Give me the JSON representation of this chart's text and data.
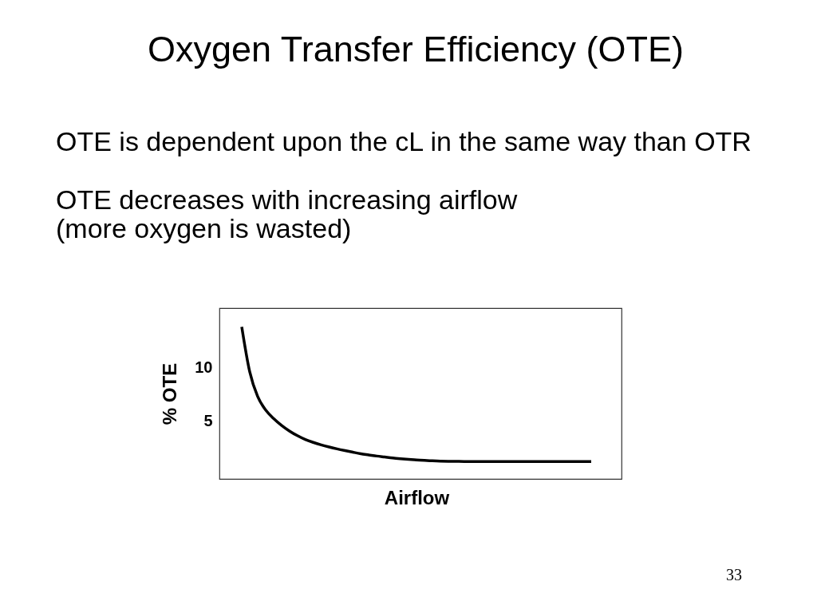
{
  "chart_data": {
    "type": "line",
    "title": "Oxygen Transfer Efficiency (OTE)",
    "annotations": [
      "OTE is dependent upon the cL in the same way than OTR",
      "OTE decreases with increasing airflow",
      "(more oxygen is wasted)",
      "33"
    ],
    "xlabel": "Airflow",
    "ylabel": "% OTE",
    "categories": [
      null,
      null,
      null,
      null,
      null,
      null,
      null,
      null,
      null,
      null,
      null,
      null,
      null,
      null,
      null,
      null,
      null,
      null,
      null,
      null,
      null,
      null,
      null,
      null,
      null,
      null,
      null,
      null,
      null,
      null,
      null,
      null,
      null,
      null,
      null,
      null,
      null,
      null,
      null,
      null,
      null,
      null,
      null,
      null,
      null
    ],
    "values": [
      13.84,
      9.64,
      7.33,
      6.06,
      5.26,
      4.62,
      4.09,
      3.65,
      3.29,
      3.02,
      2.79,
      2.59,
      2.41,
      2.25,
      2.1,
      1.96,
      1.85,
      1.74,
      1.65,
      1.56,
      1.49,
      1.43,
      1.37,
      1.33,
      1.3,
      1.27,
      1.25,
      1.24,
      1.23,
      1.23,
      1.22,
      1.22,
      1.22,
      1.22,
      1.22,
      1.22,
      1.22,
      1.22,
      1.22,
      1.22,
      1.22,
      1.22,
      1.22,
      1.22,
      1.22
    ],
    "color": "#000000",
    "ylim": [
      -0.4,
      15.6
    ],
    "yticks": [
      5,
      10
    ],
    "line_style": "solid",
    "tick_labels": "y"
  }
}
